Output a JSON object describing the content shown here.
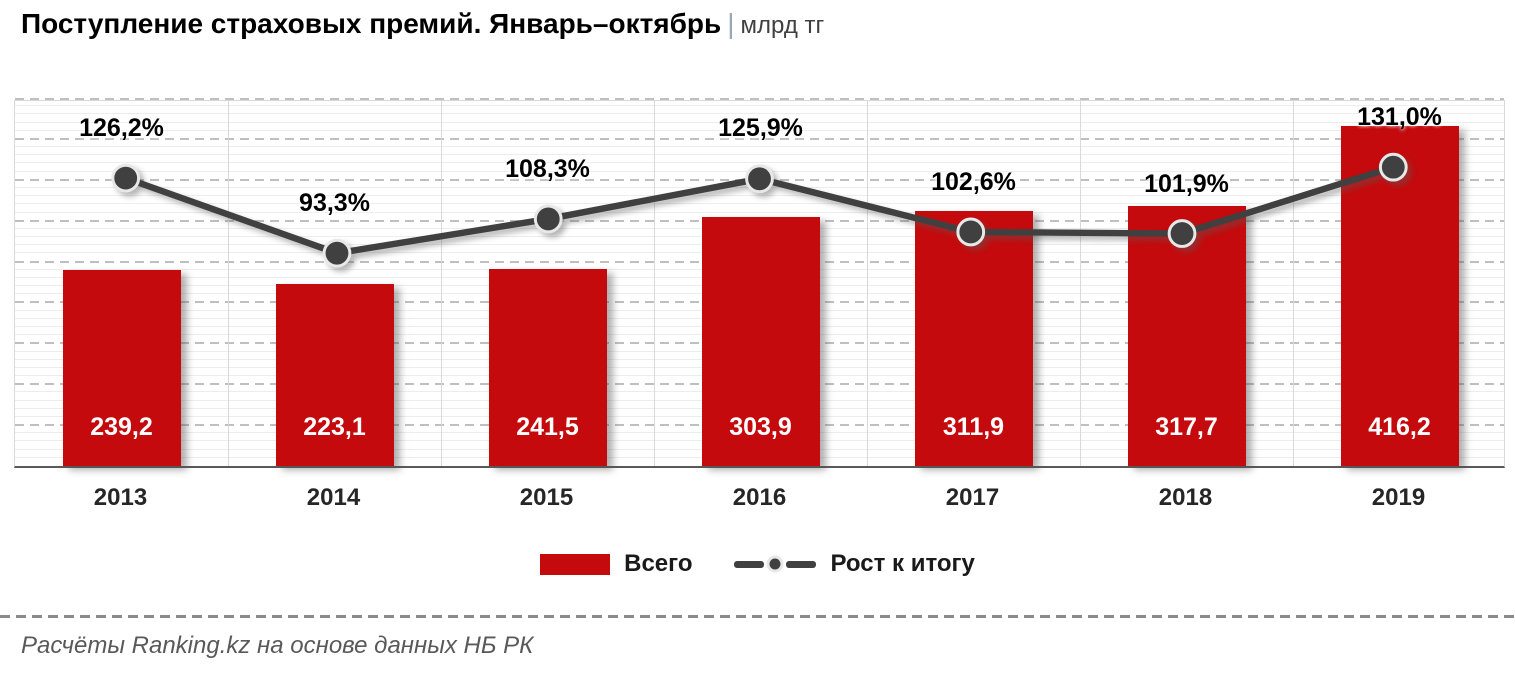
{
  "header": {
    "title": "Поступление страховых премий. Январь–октябрь",
    "separator": "|",
    "unit": "млрд тг"
  },
  "chart_data": {
    "type": "bar",
    "subtype": "combo-bar-line",
    "title": "Поступление страховых премий. Январь–октябрь, млрд тг",
    "categories": [
      "2013",
      "2014",
      "2015",
      "2016",
      "2017",
      "2018",
      "2019"
    ],
    "series": [
      {
        "name": "Всего",
        "type": "bar",
        "values": [
          239.2,
          223.1,
          241.5,
          303.9,
          311.9,
          317.7,
          416.2
        ],
        "labels": [
          "239,2",
          "223,1",
          "241,5",
          "303,9",
          "311,9",
          "317,7",
          "416,2"
        ],
        "color": "#c40a0c",
        "axis": {
          "min": 0,
          "max": 450
        }
      },
      {
        "name": "Рост к итогу",
        "type": "line",
        "values": [
          126.2,
          93.3,
          108.3,
          125.9,
          102.6,
          101.9,
          131.0
        ],
        "labels": [
          "126,2%",
          "93,3%",
          "108,3%",
          "125,9%",
          "102,6%",
          "101,9%",
          "131,0%"
        ],
        "color": "#404040",
        "axis": {
          "min": 0,
          "max": 160
        }
      }
    ],
    "grid": {
      "major_step": 50,
      "minor_step": 10,
      "horizontal": true,
      "vertical_category_separators": true
    },
    "legend_position": "bottom",
    "xlabel": "",
    "ylabel": "млрд тг"
  },
  "legend": {
    "bar_label": "Всего",
    "line_label": "Рост к итогу"
  },
  "footer": {
    "source": "Расчёты Ranking.kz на основе данных НБ РК"
  },
  "colors": {
    "bar": "#c40a0c",
    "line": "#404040",
    "marker_ring": "#e8e8e8",
    "grid_major": "#bfbfbf",
    "grid_minor": "#ededed",
    "axis": "#595959"
  }
}
